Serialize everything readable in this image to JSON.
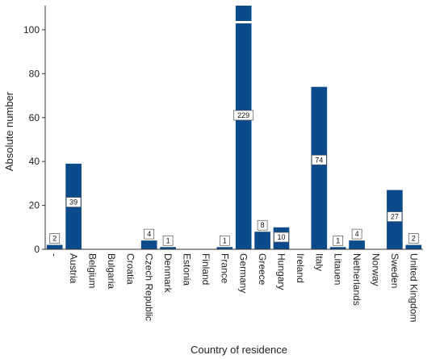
{
  "chart_data": {
    "type": "bar",
    "xlabel": "Country of residence",
    "ylabel": "Absolute number",
    "ylim": [
      0,
      111
    ],
    "yticks": [
      0,
      20,
      40,
      60,
      80,
      100
    ],
    "grid": false,
    "bar_color": "#0b4a8b",
    "categories": [
      "-",
      "Austria",
      "Belgium",
      "Bulgaria",
      "Croatia",
      "Czech Republic",
      "Denmark",
      "Estonia",
      "Finland",
      "France",
      "Germany",
      "Greece",
      "Hungary",
      "Ireland",
      "Italy",
      "Litauen",
      "Netherlands",
      "Norway",
      "Sweden",
      "United Kingdom"
    ],
    "values": [
      2,
      39,
      0,
      0,
      0,
      4,
      1,
      0,
      0,
      1,
      229,
      8,
      10,
      0,
      74,
      1,
      4,
      0,
      27,
      2
    ],
    "data_labels": [
      "2",
      "39",
      "",
      "",
      "",
      "4",
      "1",
      "",
      "",
      "1",
      "229",
      "8",
      "10",
      "",
      "74",
      "1",
      "4",
      "",
      "27",
      "2"
    ],
    "axis_break_on": "Germany"
  }
}
